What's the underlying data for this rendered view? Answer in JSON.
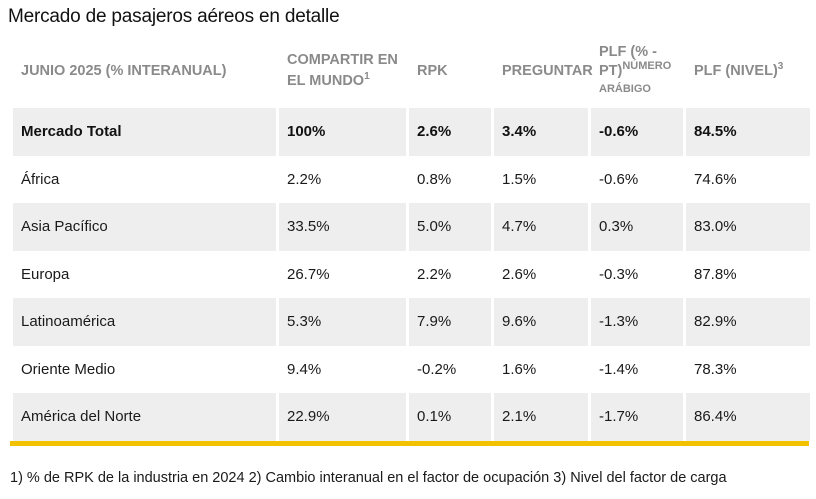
{
  "title": "Mercado de pasajeros aéreos en detalle",
  "headers": {
    "region": "JUNIO 2025 (% INTERANUAL)",
    "share_line1": "COMPARTIR EN",
    "share_line2": "EL MUNDO",
    "share_sup": "1",
    "rpk": "RPK",
    "ask": "PREGUNTAR",
    "plf_pt_line1": "PLF (% -",
    "plf_pt_line2": "PT)",
    "plf_pt_sup": "NÚMERO",
    "plf_pt_sub": "ARÁBIGO",
    "plf_level": "PLF (NIVEL)",
    "plf_level_sup": "3"
  },
  "rows": [
    {
      "region": "Mercado Total",
      "share": "100%",
      "rpk": "2.6%",
      "ask": "3.4%",
      "plf_pt": "-0.6%",
      "plf_level": "84.5%"
    },
    {
      "region": "África",
      "share": "2.2%",
      "rpk": "0.8%",
      "ask": "1.5%",
      "plf_pt": "-0.6%",
      "plf_level": "74.6%"
    },
    {
      "region": "Asia Pacífico",
      "share": "33.5%",
      "rpk": "5.0%",
      "ask": "4.7%",
      "plf_pt": "0.3%",
      "plf_level": "83.0%"
    },
    {
      "region": "Europa",
      "share": "26.7%",
      "rpk": "2.2%",
      "ask": "2.6%",
      "plf_pt": "-0.3%",
      "plf_level": "87.8%"
    },
    {
      "region": "Latinoamérica",
      "share": "5.3%",
      "rpk": "7.9%",
      "ask": "9.6%",
      "plf_pt": "-1.3%",
      "plf_level": "82.9%"
    },
    {
      "region": "Oriente Medio",
      "share": "9.4%",
      "rpk": "-0.2%",
      "ask": "1.6%",
      "plf_pt": "-1.4%",
      "plf_level": "78.3%"
    },
    {
      "region": "América del Norte",
      "share": "22.9%",
      "rpk": "0.1%",
      "ask": "2.1%",
      "plf_pt": "-1.7%",
      "plf_level": "86.4%"
    }
  ],
  "footnote": "1) % de RPK de la industria en 2024 2) Cambio interanual en el factor de ocupación 3) Nivel del factor de carga",
  "colors": {
    "accent": "#f2c200",
    "row_shade": "#eeeeee",
    "header_text": "#8a8a8a"
  }
}
